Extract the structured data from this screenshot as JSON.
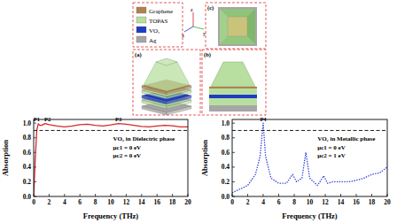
{
  "diagram": {
    "legend": [
      {
        "label": "Graphene",
        "color": "#b5804f"
      },
      {
        "label": "TOPAS",
        "color": "#b8dfa0"
      },
      {
        "label": "VO₂",
        "color": "#1f3cc4"
      },
      {
        "label": "Ag",
        "color": "#a6a6a6"
      }
    ],
    "panels": [
      {
        "label": "(a)"
      },
      {
        "label": "(b)"
      },
      {
        "label": "(c)"
      }
    ],
    "axis_labels": [
      "x",
      "y",
      "z"
    ]
  },
  "chart_data": [
    {
      "type": "line",
      "x_label": "Frequency (THz)",
      "y_label": "Absorption",
      "xlim": [
        0,
        20
      ],
      "ylim": [
        0,
        1.05
      ],
      "xticks": [
        0,
        2,
        4,
        6,
        8,
        10,
        12,
        14,
        16,
        18,
        20
      ],
      "yticks": [
        {
          "value": 0,
          "label": "0.0"
        },
        {
          "value": 0.2,
          "label": "0.2"
        },
        {
          "value": 0.4,
          "label": "0.4"
        },
        {
          "value": 0.6,
          "label": "0.6"
        },
        {
          "value": 0.8,
          "label": "0.8"
        },
        {
          "value": 1.0,
          "label": "1.0"
        }
      ],
      "grid": false,
      "series": [
        {
          "color": "#d62728",
          "line_style": "solid",
          "x": [
            0,
            0.2,
            0.4,
            0.6,
            0.8,
            1.0,
            1.5,
            2,
            3,
            4,
            5,
            6,
            7,
            8,
            9,
            10,
            11,
            12,
            13,
            14,
            15,
            16,
            17,
            18,
            19,
            20
          ],
          "values": [
            0.0,
            0.5,
            0.9,
            0.99,
            0.97,
            0.97,
            0.995,
            0.98,
            0.96,
            0.95,
            0.96,
            0.98,
            0.985,
            0.97,
            0.96,
            0.975,
            0.995,
            0.985,
            0.97,
            0.955,
            0.95,
            0.96,
            0.97,
            0.965,
            0.95,
            0.95
          ]
        },
        {
          "color": "#000000",
          "line_style": "dashed",
          "x": [
            0,
            20
          ],
          "values": [
            0.9,
            0.9
          ]
        }
      ],
      "annotations": [
        {
          "text": "P1",
          "x": 0.4,
          "y": 1.02
        },
        {
          "text": "P2",
          "x": 1.8,
          "y": 1.02
        },
        {
          "text": "P3",
          "x": 11,
          "y": 1.02
        },
        {
          "text": "VO₂ in Dielectric phase",
          "x": 10.3,
          "y": 0.76
        },
        {
          "text": "μc1 = 0 eV",
          "x": 10.3,
          "y": 0.64
        },
        {
          "text": "μc2 = 0 eV",
          "x": 10.3,
          "y": 0.53
        }
      ]
    },
    {
      "type": "line",
      "x_label": "Frequency (THz)",
      "y_label": "Absorption",
      "xlim": [
        0,
        20
      ],
      "ylim": [
        0,
        1.05
      ],
      "xticks": [
        0,
        2,
        4,
        6,
        8,
        10,
        12,
        14,
        16,
        18,
        20
      ],
      "yticks": [
        {
          "value": 0,
          "label": "0.0"
        },
        {
          "value": 0.2,
          "label": "0.2"
        },
        {
          "value": 0.4,
          "label": "0.4"
        },
        {
          "value": 0.6,
          "label": "0.6"
        },
        {
          "value": 0.8,
          "label": "0.8"
        },
        {
          "value": 1.0,
          "label": "1.0"
        }
      ],
      "grid": false,
      "series": [
        {
          "color": "#2b3fd6",
          "line_style": "dotted",
          "x": [
            0,
            1,
            2,
            3,
            3.6,
            4,
            4.3,
            5,
            6,
            7,
            7.8,
            8.3,
            9,
            9.5,
            10,
            11,
            11.8,
            12.3,
            13,
            14,
            15,
            16,
            17,
            18,
            19,
            20
          ],
          "values": [
            0.05,
            0.1,
            0.15,
            0.3,
            0.55,
            1.0,
            0.55,
            0.25,
            0.18,
            0.18,
            0.3,
            0.2,
            0.25,
            0.6,
            0.25,
            0.15,
            0.28,
            0.18,
            0.2,
            0.2,
            0.2,
            0.22,
            0.25,
            0.3,
            0.32,
            0.4
          ]
        },
        {
          "color": "#000000",
          "line_style": "dashed",
          "x": [
            0,
            20
          ],
          "values": [
            0.9,
            0.9
          ]
        }
      ],
      "annotations": [
        {
          "text": "P4",
          "x": 4,
          "y": 1.02
        },
        {
          "text": "VO₂ in Metallic phase",
          "x": 11,
          "y": 0.76
        },
        {
          "text": "μc1 = 0 eV",
          "x": 11,
          "y": 0.64
        },
        {
          "text": "μc2 = 1 eV",
          "x": 11,
          "y": 0.53
        }
      ]
    }
  ]
}
